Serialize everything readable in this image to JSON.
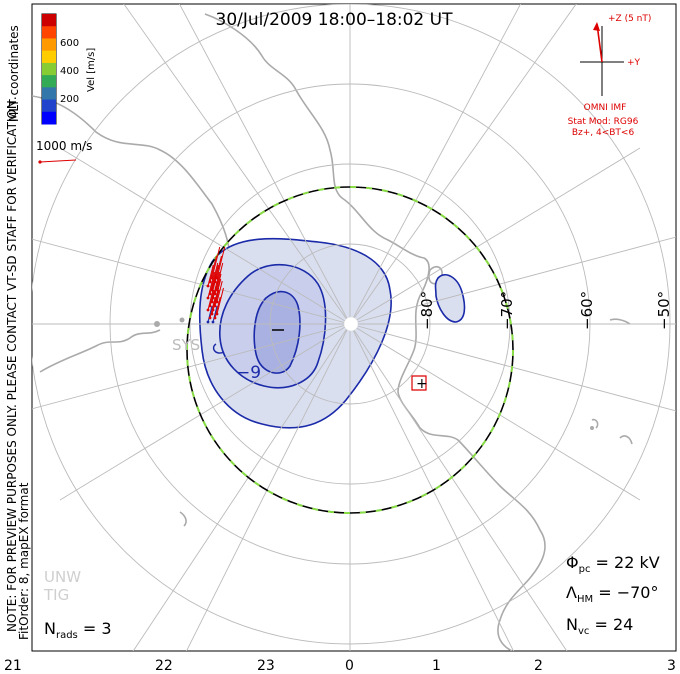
{
  "title": "30/Jul/2009 18:00–18:02 UT",
  "colorbar": {
    "label": "Vel [m/s]",
    "ticks": [
      "600",
      "400",
      "200"
    ],
    "colors": [
      "#cc0000",
      "#ff4400",
      "#ff9900",
      "#ffcc00",
      "#88cc33",
      "#33aa55",
      "#3377aa",
      "#2244cc",
      "#0000ff"
    ]
  },
  "vector_scale_label": "1000 m/s",
  "imf": {
    "z_label": "+Z (5 nT)",
    "y_label": "+Y",
    "source_label": "OMNI IMF",
    "stat_mod_line1": "Stat Mod: RG96",
    "stat_mod_line2": "Bz+, 4<BT<6",
    "color": "#dd0000"
  },
  "left_notes": {
    "mlt": "MLT coordinates",
    "note": "NOTE: FOR PREVIEW PURPOSES ONLY. PLEASE CONTACT VT-SD STAFF FOR VERIFICATION.",
    "fit": "FitOrder: 8, mapEX format"
  },
  "stats": {
    "phi_sym": "Φ",
    "phi_sub": "pc",
    "phi_val": " = 22 kV",
    "lam_sym": "Λ",
    "lam_sub": "HM",
    "lam_val": " = −70°",
    "nvc_sym": "N",
    "nvc_sub": "vc",
    "nvc_val": " = 24",
    "nrads_sym": "N",
    "nrads_sub": "rads",
    "nrads_val": " = 3"
  },
  "watermark": {
    "line1": "UNW",
    "line2": "TIG"
  },
  "chart_data": {
    "type": "scatter",
    "projection": "polar, southern hemisphere, MLT coordinates",
    "latitude_labels": [
      "−80°",
      "−70°",
      "−60°",
      "−50°"
    ],
    "mlt_labels": [
      "21",
      "22",
      "23",
      "0",
      "1",
      "2",
      "3"
    ],
    "potential_contour_labels": [
      "−9",
      "+"
    ],
    "heppner_maynard_boundary_lat": -70,
    "cross_polar_cap_potential_kV": 22,
    "vectors_count": 24,
    "radars_count": 3
  }
}
